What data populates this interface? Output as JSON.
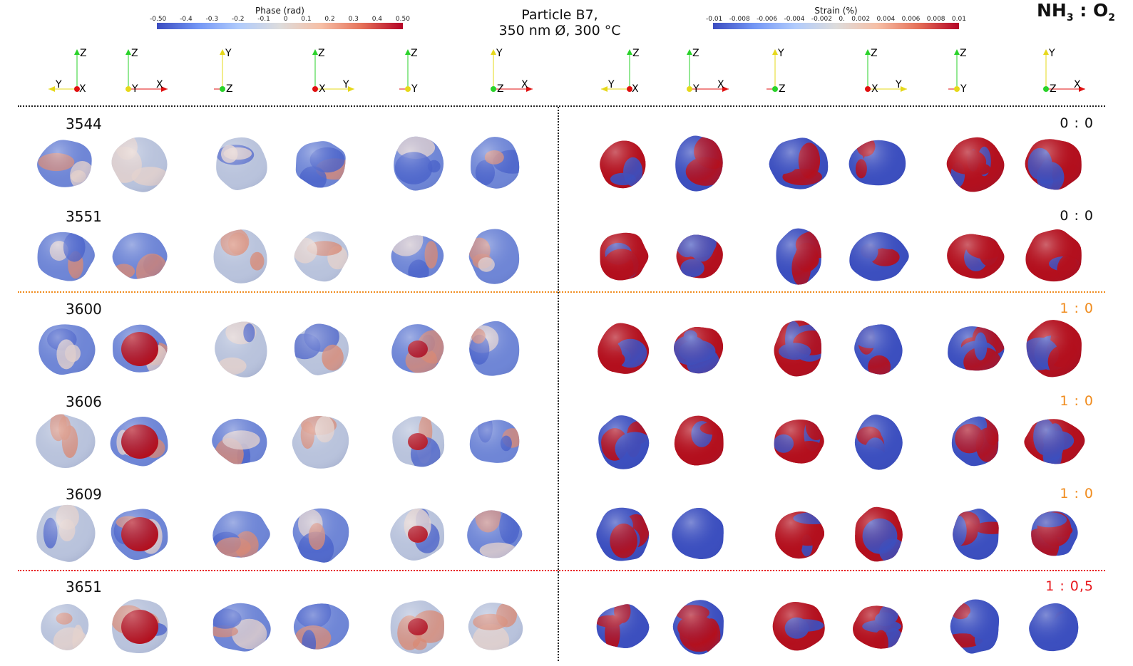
{
  "title": {
    "line1": "Particle B7,",
    "line2": "350 nm Ø, 300 °C"
  },
  "gas_label": {
    "a": "NH",
    "a_sub": "3",
    "sep": " : ",
    "b": "O",
    "b_sub": "2"
  },
  "phase_colorbar": {
    "title": "Phase (rad)",
    "ticks": [
      "-0.50",
      "-0.4",
      "-0.3",
      "-0.2",
      "-0.1",
      "0",
      "0.1",
      "0.2",
      "0.3",
      "0.4",
      "0.50"
    ]
  },
  "strain_colorbar": {
    "title": "Strain (%)",
    "ticks": [
      "-0.01",
      "-0.008",
      "-0.006",
      "-0.004",
      "-0.002",
      "0.",
      "0.002",
      "0.004",
      "0.006",
      "0.008",
      "0.01"
    ]
  },
  "axis_triads": [
    {
      "h": "Y",
      "v": "Z",
      "o": "X"
    },
    {
      "h": "X",
      "v": "Z",
      "o": "Y"
    },
    {
      "h": "X",
      "v": "Y",
      "o": "Z"
    },
    {
      "h": "Y",
      "v": "Z",
      "o": "X"
    },
    {
      "h": "X",
      "v": "Z",
      "o": "Y"
    },
    {
      "h": "X",
      "v": "Y",
      "o": "Z"
    }
  ],
  "rows": [
    {
      "scan": "3544",
      "ratio": "0 : 0",
      "ratio_color": "#111111"
    },
    {
      "scan": "3551",
      "ratio": "0 : 0",
      "ratio_color": "#111111"
    },
    {
      "scan": "3600",
      "ratio": "1 : 0",
      "ratio_color": "#f08c1e"
    },
    {
      "scan": "3606",
      "ratio": "1 : 0",
      "ratio_color": "#f08c1e"
    },
    {
      "scan": "3609",
      "ratio": "1 : 0",
      "ratio_color": "#f08c1e"
    },
    {
      "scan": "3651",
      "ratio": "1 : 0,5",
      "ratio_color": "#e8191e"
    }
  ],
  "colors": {
    "blue": "#3c4fbf",
    "red": "#b3101e",
    "neutral": "#dcdcdc",
    "separator_orange": "#f08c1e",
    "separator_red": "#e8191e",
    "axis_red": "#e01010",
    "axis_green": "#2ad22a",
    "axis_yellow": "#e6d81a"
  }
}
